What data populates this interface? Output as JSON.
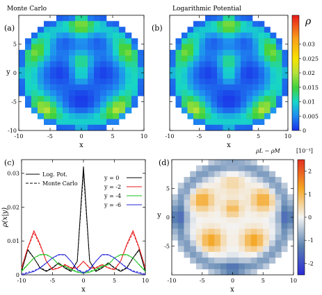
{
  "chart_data": [
    {
      "panel": "(a)",
      "type": "heatmap",
      "title": "Monte Carlo",
      "xlabel": "x",
      "ylabel": "y",
      "xticks": [
        "-10",
        "-5",
        "0",
        "5",
        "10"
      ],
      "yticks": [
        "-10",
        "-5",
        "0",
        "5"
      ],
      "xlim": [
        -10,
        10
      ],
      "ylim": [
        -10,
        10
      ],
      "grid": "20x20 cells within circular domain radius 10"
    },
    {
      "panel": "(b)",
      "type": "heatmap",
      "title": "Logarithmic Potential",
      "xlabel": "x",
      "xticks": [
        "-10",
        "-5",
        "0",
        "5",
        "10"
      ],
      "xlim": [
        -10,
        10
      ],
      "ylim": [
        -10,
        10
      ],
      "colorbar": {
        "label": "ρ",
        "range": [
          0,
          0.04
        ],
        "ticks": [
          "0.03",
          "0.025",
          "0.02",
          "0.015",
          "0.01",
          "0.005",
          "0"
        ],
        "tick_values": [
          0.03,
          0.025,
          0.02,
          0.015,
          0.01,
          0.005,
          0
        ]
      }
    },
    {
      "panel": "(c)",
      "type": "line",
      "xlabel": "x",
      "ylabel": "ρ(x|y)",
      "xlim": [
        -10,
        10
      ],
      "ylim": [
        0,
        0.034
      ],
      "xticks": [
        "-10",
        "-5",
        "0",
        "5",
        "10"
      ],
      "yticks": [
        "0",
        "0.01",
        "0.02",
        "0.03"
      ],
      "line_style_legend": [
        {
          "label": "Log. Pot.",
          "style": "solid"
        },
        {
          "label": "Monte Carlo",
          "style": "dashed"
        }
      ],
      "series": [
        {
          "name": "y = 0",
          "color": "#000000",
          "x": [
            -10,
            -9,
            -8,
            -7,
            -6,
            -5,
            -4,
            -3,
            -2,
            -1,
            0,
            1,
            2,
            3,
            4,
            5,
            6,
            7,
            8,
            9,
            10
          ],
          "values": [
            0.001,
            0.0075,
            0.005,
            0.002,
            0.001,
            0.002,
            0.0035,
            0.002,
            0.001,
            0.004,
            0.032,
            0.004,
            0.001,
            0.002,
            0.0035,
            0.002,
            0.001,
            0.002,
            0.005,
            0.0075,
            0.001
          ]
        },
        {
          "name": "y = -2",
          "color": "#e8191a",
          "x": [
            -10,
            -9,
            -8,
            -7,
            -6,
            -5,
            -4,
            -3,
            -2,
            -1,
            0,
            1,
            2,
            3,
            4,
            5,
            6,
            7,
            8,
            9,
            10
          ],
          "values": [
            0.002,
            0.008,
            0.013,
            0.009,
            0.004,
            0.0015,
            0.002,
            0.003,
            0.002,
            0.002,
            0.004,
            0.002,
            0.002,
            0.003,
            0.002,
            0.0015,
            0.004,
            0.009,
            0.013,
            0.008,
            0.002
          ]
        },
        {
          "name": "y = -4",
          "color": "#17c017",
          "x": [
            -10,
            -9,
            -8,
            -7,
            -6,
            -5,
            -4,
            -3,
            -2,
            -1,
            0,
            1,
            2,
            3,
            4,
            5,
            6,
            7,
            8,
            9,
            10
          ],
          "values": [
            0.001,
            0.003,
            0.005,
            0.006,
            0.006,
            0.005,
            0.003,
            0.0025,
            0.0015,
            0.0008,
            0.0005,
            0.0008,
            0.0015,
            0.0025,
            0.003,
            0.005,
            0.006,
            0.006,
            0.005,
            0.003,
            0.001
          ]
        },
        {
          "name": "y = -6",
          "color": "#2626d9",
          "x": [
            -10,
            -9,
            -8,
            -7,
            -6,
            -5,
            -4,
            -3,
            -2,
            -1,
            0,
            1,
            2,
            3,
            4,
            5,
            6,
            7,
            8,
            9,
            10
          ],
          "values": [
            0.0,
            0.0005,
            0.001,
            0.002,
            0.0035,
            0.005,
            0.006,
            0.006,
            0.004,
            0.0015,
            0.0005,
            0.0015,
            0.004,
            0.006,
            0.006,
            0.005,
            0.0035,
            0.002,
            0.001,
            0.0005,
            0.0
          ]
        }
      ]
    },
    {
      "panel": "(d)",
      "type": "heatmap",
      "xlabel": "x",
      "ylabel": "y",
      "xticks": [
        "-10",
        "-5",
        "0",
        "5",
        "10"
      ],
      "yticks": [
        "-5",
        "0",
        "5"
      ],
      "xlim": [
        -10,
        10
      ],
      "ylim": [
        -10,
        10
      ],
      "colorbar": {
        "label": "ρL − ρM",
        "unit": "[10⁻³]",
        "range": [
          -2.5,
          2.5
        ],
        "ticks": [
          "2",
          "1",
          "0",
          "-1",
          "-2"
        ],
        "tick_values": [
          2,
          1,
          0,
          -1,
          -2
        ]
      }
    }
  ],
  "colors": {
    "density_scale": [
      "#1a2ee8",
      "#1f8ff0",
      "#17d6c8",
      "#3fd23f",
      "#b6e23a",
      "#f7e300",
      "#f99e1a",
      "#e8191a"
    ],
    "diff_scale_neg": "#2b2bd6",
    "diff_scale_pos": "#e23020"
  }
}
